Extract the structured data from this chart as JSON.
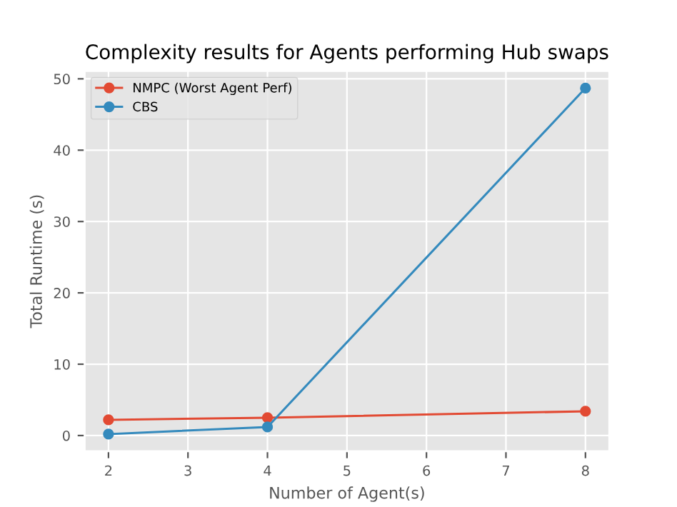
{
  "chart_data": {
    "type": "line",
    "title": "Complexity results for Agents performing Hub swaps",
    "xlabel": "Number of Agent(s)",
    "ylabel": "Total Runtime (s)",
    "x": [
      2,
      4,
      8
    ],
    "series": [
      {
        "name": "NMPC (Worst Agent Perf)",
        "color": "#e24a33",
        "values": [
          2.2,
          2.5,
          3.4
        ]
      },
      {
        "name": "CBS",
        "color": "#348abd",
        "values": [
          0.2,
          1.2,
          48.7
        ]
      }
    ],
    "xlim": [
      1.7,
      8.3
    ],
    "xticks": [
      2,
      3,
      4,
      5,
      6,
      7,
      8
    ],
    "ylim": [
      -2.2,
      51.1
    ],
    "yticks": [
      0,
      10,
      20,
      30,
      40,
      50
    ],
    "grid": true,
    "legend": "top left",
    "marker": "circle",
    "line_style": "solid"
  }
}
